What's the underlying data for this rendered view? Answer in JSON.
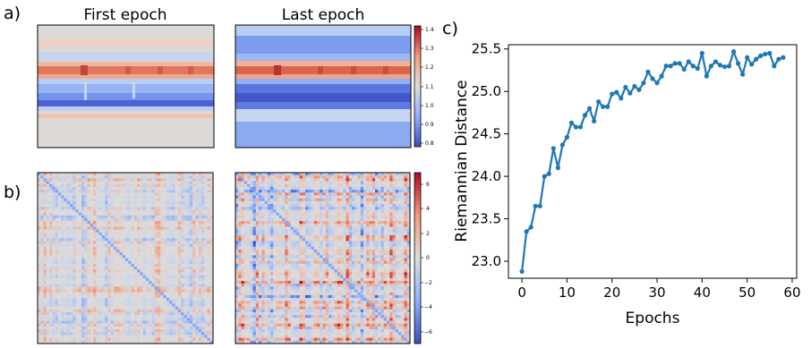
{
  "panels": {
    "a": {
      "label": "a)",
      "titles": [
        "First epoch",
        "Last epoch"
      ],
      "colorbar": {
        "ticks": [
          "0.8",
          "0.9",
          "1.0",
          "1.1",
          "1.2",
          "1.3",
          "1.4"
        ]
      }
    },
    "b": {
      "label": "b)",
      "colorbar": {
        "ticks": [
          "−6",
          "−4",
          "−2",
          "0",
          "2",
          "4",
          "6"
        ]
      }
    },
    "c": {
      "label": "c)"
    }
  },
  "chart_data": [
    {
      "type": "heatmap",
      "panel": "a",
      "title": "First epoch",
      "colormap": "coolwarm",
      "color_range": [
        0.8,
        1.4
      ],
      "colorbar_ticks": [
        0.8,
        0.9,
        1.0,
        1.1,
        1.2,
        1.3,
        1.4
      ]
    },
    {
      "type": "heatmap",
      "panel": "a",
      "title": "Last epoch",
      "colormap": "coolwarm",
      "color_range": [
        0.8,
        1.4
      ],
      "colorbar_ticks": [
        0.8,
        0.9,
        1.0,
        1.1,
        1.2,
        1.3,
        1.4
      ]
    },
    {
      "type": "heatmap",
      "panel": "b",
      "title": "",
      "colormap": "coolwarm",
      "color_range": [
        -7,
        7
      ],
      "colorbar_ticks": [
        -6,
        -4,
        -2,
        0,
        2,
        4,
        6
      ]
    },
    {
      "type": "heatmap",
      "panel": "b",
      "title": "",
      "colormap": "coolwarm",
      "color_range": [
        -7,
        7
      ],
      "colorbar_ticks": [
        -6,
        -4,
        -2,
        0,
        2,
        4,
        6
      ]
    },
    {
      "type": "line",
      "panel": "c",
      "title": "",
      "xlabel": "Epochs",
      "ylabel": "Riemannian Distance",
      "xlim": [
        -3,
        61
      ],
      "ylim": [
        22.8,
        25.55
      ],
      "xticks": [
        0,
        10,
        20,
        30,
        40,
        50,
        60
      ],
      "yticks": [
        23.0,
        23.5,
        24.0,
        24.5,
        25.0,
        25.5
      ],
      "grid": false,
      "color": "#1f77b4",
      "marker": "circle",
      "x": [
        0,
        1,
        2,
        3,
        4,
        5,
        6,
        7,
        8,
        9,
        10,
        11,
        12,
        13,
        14,
        15,
        16,
        17,
        18,
        19,
        20,
        21,
        22,
        23,
        24,
        25,
        26,
        27,
        28,
        29,
        30,
        31,
        32,
        33,
        34,
        35,
        36,
        37,
        38,
        39,
        40,
        41,
        42,
        43,
        44,
        45,
        46,
        47,
        48,
        49,
        50,
        51,
        52,
        53,
        54,
        55,
        56,
        57,
        58
      ],
      "y": [
        22.88,
        23.35,
        23.4,
        23.65,
        23.65,
        24.0,
        24.03,
        24.33,
        24.1,
        24.37,
        24.46,
        24.63,
        24.58,
        24.58,
        24.72,
        24.8,
        24.65,
        24.88,
        24.82,
        24.82,
        24.97,
        24.99,
        24.92,
        25.05,
        24.98,
        25.06,
        25.02,
        25.1,
        25.23,
        25.15,
        25.1,
        25.18,
        25.3,
        25.3,
        25.33,
        25.33,
        25.26,
        25.35,
        25.3,
        25.27,
        25.45,
        25.18,
        25.3,
        25.35,
        25.31,
        25.29,
        25.3,
        25.47,
        25.33,
        25.2,
        25.4,
        25.32,
        25.38,
        25.42,
        25.44,
        25.45,
        25.3,
        25.38,
        25.4
      ]
    }
  ]
}
